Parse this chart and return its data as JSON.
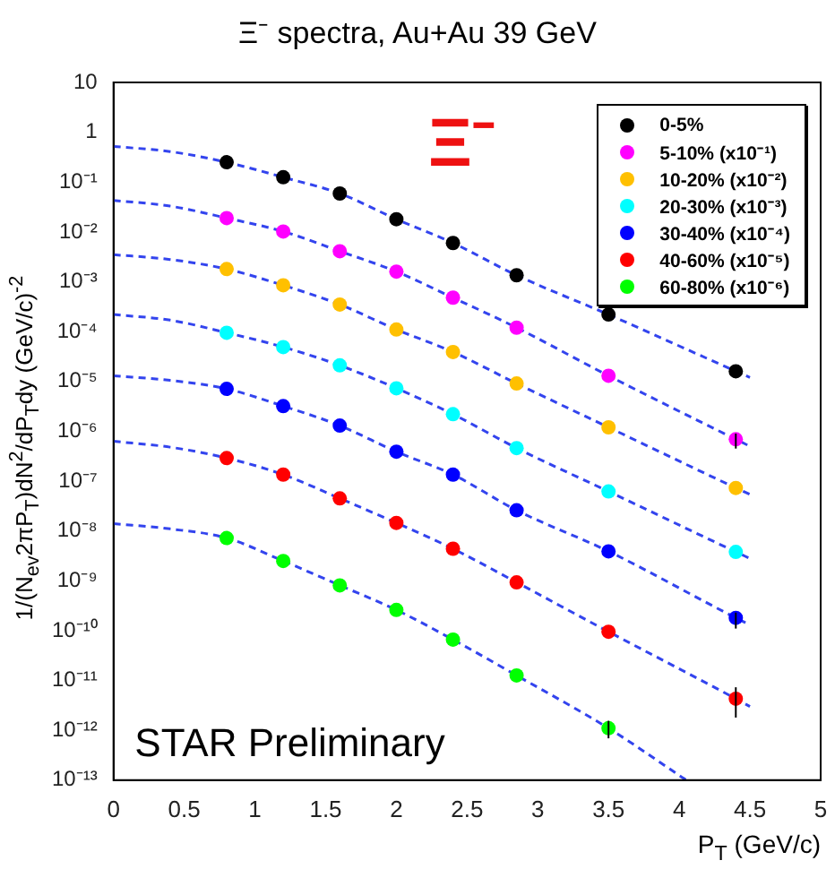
{
  "chart_data": {
    "type": "scatter",
    "title": "Ξ⁻ spectra, Au+Au 39 GeV",
    "xlabel": "P$_{T}$ (GeV/c)",
    "ylabel": "1/(N$_{ev}$2πP$_{T}$)dN$^{2}$/dP$_{T}$dy (GeV/c)$^{-2}$",
    "annotations": [
      "Ξ⁻",
      "STAR Preliminary"
    ],
    "x": [
      0.8,
      1.2,
      1.6,
      2.0,
      2.4,
      2.85,
      3.5,
      4.4
    ],
    "series": [
      {
        "name": "0-5%",
        "color": "#000000",
        "values": [
          0.25,
          0.125,
          0.059,
          0.018,
          0.006,
          0.00135,
          0.00022,
          1.6e-05
        ]
      },
      {
        "name": "5-10% (x10⁻¹)",
        "color": "#ff00ff",
        "values": [
          0.019,
          0.0102,
          0.0041,
          0.0016,
          0.00048,
          0.00012,
          1.3e-05,
          6.9e-07
        ],
        "errors": [
          null,
          null,
          null,
          null,
          null,
          null,
          null,
          [
            4.5e-07,
            9e-07
          ]
        ]
      },
      {
        "name": "10-20% (x10⁻²)",
        "color": "#ffc000",
        "values": [
          0.0018,
          0.00085,
          0.00035,
          0.00011,
          3.9e-05,
          9.1e-06,
          1.2e-06,
          7.3e-08
        ]
      },
      {
        "name": "20-30% (x10⁻³)",
        "color": "#00ffff",
        "values": [
          9.5e-05,
          4.9e-05,
          2.1e-05,
          7.3e-06,
          2.2e-06,
          4.6e-07,
          6.2e-08,
          3.8e-09
        ]
      },
      {
        "name": "30-40% (x10⁻⁴)",
        "color": "#0000ff",
        "values": [
          7.1e-06,
          3.2e-06,
          1.3e-06,
          3.9e-07,
          1.35e-07,
          2.6e-08,
          3.9e-09,
          1.8e-10
        ],
        "errors": [
          null,
          null,
          null,
          null,
          null,
          null,
          null,
          [
            1.1e-10,
            2.3e-10
          ]
        ]
      },
      {
        "name": "40-60% (x10⁻⁵)",
        "color": "#ff0000",
        "values": [
          2.9e-07,
          1.35e-07,
          4.5e-08,
          1.45e-08,
          4.4e-09,
          9.3e-10,
          9.5e-11,
          4.3e-12
        ],
        "errors": [
          null,
          null,
          null,
          null,
          null,
          null,
          null,
          [
            1.8e-12,
            7.3e-12
          ]
        ]
      },
      {
        "name": "60-80% (x10⁻⁶)",
        "color": "#00ff00",
        "x": [
          0.8,
          1.2,
          1.6,
          2.0,
          2.4,
          2.85,
          3.5
        ],
        "values": [
          7.2e-09,
          2.5e-09,
          8.1e-10,
          2.6e-10,
          6.6e-11,
          1.26e-11,
          1.1e-12
        ],
        "errors": [
          null,
          null,
          null,
          null,
          null,
          null,
          [
            6.9e-13,
            1.55e-12
          ]
        ]
      },
      {
        "type": "line",
        "color": "#3344ee",
        "marker": "none",
        "line_style": "dashed",
        "x": [
          0,
          0.4,
          0.8,
          1.2,
          1.6,
          2.0,
          2.4,
          2.85,
          3.5,
          4.4,
          4.5
        ],
        "values": [
          0.52,
          0.41,
          0.25,
          0.125,
          0.059,
          0.018,
          0.006,
          0.00135,
          0.00022,
          1.6e-05,
          1.2e-05
        ]
      },
      {
        "type": "line",
        "color": "#3344ee",
        "marker": "none",
        "line_style": "dashed",
        "x": [
          0,
          0.4,
          0.8,
          1.2,
          1.6,
          2.0,
          2.4,
          2.85,
          3.5,
          4.4,
          4.5
        ],
        "values": [
          0.043,
          0.033,
          0.019,
          0.0102,
          0.0041,
          0.0016,
          0.00048,
          0.00012,
          1.3e-05,
          6.9e-07,
          5e-07
        ]
      },
      {
        "type": "line",
        "color": "#3344ee",
        "marker": "none",
        "line_style": "dashed",
        "x": [
          0,
          0.4,
          0.8,
          1.2,
          1.6,
          2.0,
          2.4,
          2.85,
          3.5,
          4.4,
          4.5
        ],
        "values": [
          0.0035,
          0.0028,
          0.0018,
          0.00085,
          0.00035,
          0.00011,
          3.9e-05,
          9.1e-06,
          1.2e-06,
          7.3e-08,
          5.4e-08
        ]
      },
      {
        "type": "line",
        "color": "#3344ee",
        "marker": "none",
        "line_style": "dashed",
        "x": [
          0,
          0.4,
          0.8,
          1.2,
          1.6,
          2.0,
          2.4,
          2.85,
          3.5,
          4.4,
          4.5
        ],
        "values": [
          0.00022,
          0.00017,
          9.5e-05,
          4.9e-05,
          2.1e-05,
          7.3e-06,
          2.2e-06,
          4.6e-07,
          6.2e-08,
          3.8e-09,
          2.8e-09
        ]
      },
      {
        "type": "line",
        "color": "#3344ee",
        "marker": "none",
        "line_style": "dashed",
        "x": [
          0,
          0.4,
          0.8,
          1.2,
          1.6,
          2.0,
          2.4,
          2.85,
          3.5,
          4.4,
          4.5
        ],
        "values": [
          1.3e-05,
          1.05e-05,
          7.1e-06,
          3.2e-06,
          1.3e-06,
          3.9e-07,
          1.35e-07,
          2.6e-08,
          3.9e-09,
          1.8e-10,
          1.3e-10
        ]
      },
      {
        "type": "line",
        "color": "#3344ee",
        "marker": "none",
        "line_style": "dashed",
        "x": [
          0,
          0.4,
          0.8,
          1.2,
          1.6,
          2.0,
          2.4,
          2.85,
          3.5,
          4.4,
          4.5
        ],
        "values": [
          6.3e-07,
          4.8e-07,
          2.9e-07,
          1.35e-07,
          4.5e-08,
          1.45e-08,
          4.4e-09,
          9.3e-10,
          9.5e-11,
          4.3e-12,
          3e-12
        ]
      },
      {
        "type": "line",
        "color": "#3344ee",
        "marker": "none",
        "line_style": "dashed",
        "x": [
          0,
          0.4,
          0.8,
          1.2,
          1.6,
          2.0,
          2.4,
          2.85,
          3.5,
          4.05
        ],
        "values": [
          1.4e-08,
          1.1e-08,
          7.2e-09,
          2.5e-09,
          8.1e-10,
          2.6e-10,
          6.6e-11,
          1.26e-11,
          1.1e-12,
          1e-13
        ]
      }
    ],
    "marker": "circle",
    "log": "y",
    "legend": "top right",
    "xlim": [
      0,
      5
    ],
    "xticks": [
      0,
      0.5,
      1,
      1.5,
      2,
      2.5,
      3,
      3.5,
      4,
      4.5,
      5
    ],
    "ylim": [
      1e-13,
      10
    ],
    "yticks": [
      {
        "value": 1e-13,
        "label": "10⁻¹³"
      },
      {
        "value": 1e-12,
        "label": "10⁻¹²"
      },
      {
        "value": 1e-11,
        "label": "10⁻¹¹"
      },
      {
        "value": 1e-10,
        "label": "10⁻¹⁰"
      },
      {
        "value": 1e-09,
        "label": "10⁻⁹"
      },
      {
        "value": 1e-08,
        "label": "10⁻⁸"
      },
      {
        "value": 1e-07,
        "label": "10⁻⁷"
      },
      {
        "value": 1e-06,
        "label": "10⁻⁶"
      },
      {
        "value": 1e-05,
        "label": "10⁻⁵"
      },
      {
        "value": 0.0001,
        "label": "10⁻⁴"
      },
      {
        "value": 0.001,
        "label": "10⁻³"
      },
      {
        "value": 0.01,
        "label": "10⁻²"
      },
      {
        "value": 0.1,
        "label": "10⁻¹"
      },
      1,
      10
    ]
  }
}
